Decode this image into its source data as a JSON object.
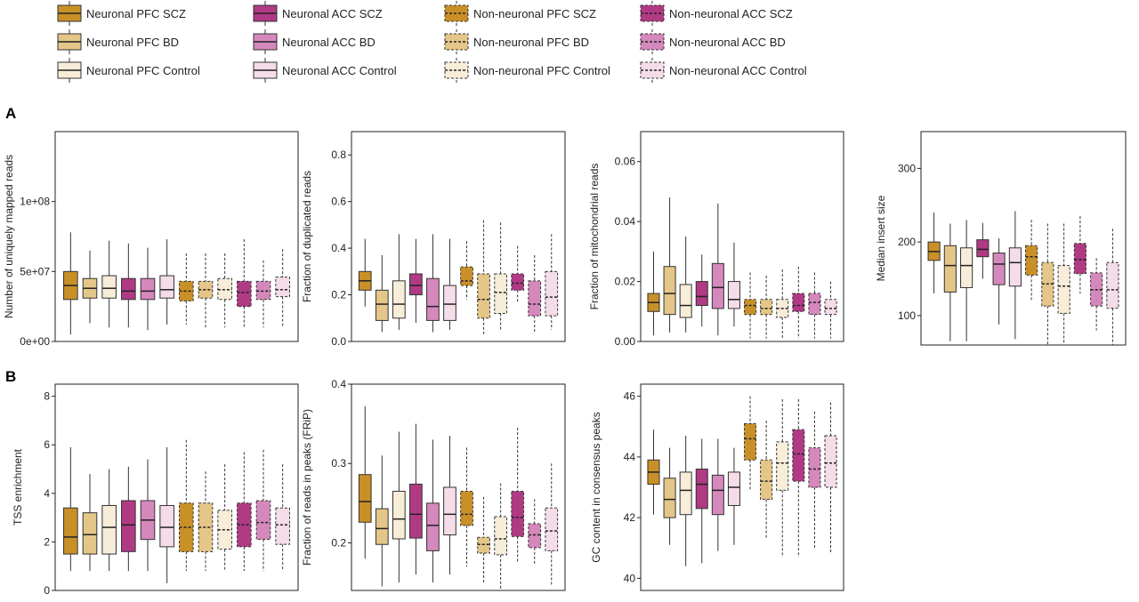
{
  "panel_letters": [
    "A",
    "B"
  ],
  "legend": [
    {
      "label": "Neuronal PFC SCZ",
      "color": "#c99028",
      "dashed": false
    },
    {
      "label": "Neuronal  PFC BD",
      "color": "#e4c688",
      "dashed": false
    },
    {
      "label": "Neuronal PFC Control",
      "color": "#f7edd8",
      "dashed": false
    },
    {
      "label": "Neuronal ACC SCZ",
      "color": "#b03a84",
      "dashed": false
    },
    {
      "label": "Neuronal  ACC BD",
      "color": "#d588bb",
      "dashed": false
    },
    {
      "label": "Neuronal  ACC Control",
      "color": "#f5dce9",
      "dashed": false
    },
    {
      "label": "Non-neuronal PFC SCZ",
      "color": "#c99028",
      "dashed": true
    },
    {
      "label": "Non-neuronal PFC BD",
      "color": "#e4c688",
      "dashed": true
    },
    {
      "label": "Non-neuronal PFC Control",
      "color": "#f7edd8",
      "dashed": true
    },
    {
      "label": "Non-neuronal ACC SCZ",
      "color": "#b03a84",
      "dashed": true
    },
    {
      "label": "Non-neuronal ACC BD",
      "color": "#d588bb",
      "dashed": true
    },
    {
      "label": "Non-neuronal ACC Control",
      "color": "#f5dce9",
      "dashed": true
    }
  ],
  "chart_data": [
    {
      "type": "box",
      "ylabel": "Number of uniquely mapped reads",
      "ylim": [
        0,
        150000000
      ],
      "yticks": [
        0,
        50000000,
        100000000
      ],
      "ytick_labels": [
        "0e+00",
        "5e+07",
        "1e+08"
      ],
      "boxes": [
        {
          "min": 5000000,
          "q1": 30000000,
          "median": 40000000,
          "q3": 50000000,
          "max": 78000000
        },
        {
          "min": 13000000,
          "q1": 31000000,
          "median": 38000000,
          "q3": 45000000,
          "max": 65000000
        },
        {
          "min": 10000000,
          "q1": 31000000,
          "median": 38000000,
          "q3": 47000000,
          "max": 72000000
        },
        {
          "min": 10000000,
          "q1": 30000000,
          "median": 36000000,
          "q3": 45000000,
          "max": 70000000
        },
        {
          "min": 8000000,
          "q1": 30000000,
          "median": 36000000,
          "q3": 45000000,
          "max": 67000000
        },
        {
          "min": 12000000,
          "q1": 31000000,
          "median": 37000000,
          "q3": 47000000,
          "max": 73000000
        },
        {
          "min": 12000000,
          "q1": 29000000,
          "median": 36000000,
          "q3": 43000000,
          "max": 63000000
        },
        {
          "min": 10000000,
          "q1": 31000000,
          "median": 37000000,
          "q3": 43000000,
          "max": 63000000
        },
        {
          "min": 10000000,
          "q1": 30000000,
          "median": 37000000,
          "q3": 45000000,
          "max": 63000000
        },
        {
          "min": 10000000,
          "q1": 25000000,
          "median": 35000000,
          "q3": 43000000,
          "max": 73000000
        },
        {
          "min": 10000000,
          "q1": 30000000,
          "median": 36000000,
          "q3": 43000000,
          "max": 58000000
        },
        {
          "min": 10000000,
          "q1": 32000000,
          "median": 37000000,
          "q3": 46000000,
          "max": 66000000
        }
      ]
    },
    {
      "type": "box",
      "ylabel": "Fraction of duplicated reads",
      "ylim": [
        0,
        0.9
      ],
      "yticks": [
        0,
        0.2,
        0.4,
        0.6,
        0.8
      ],
      "ytick_labels": [
        "0.0",
        "0.2",
        "0.4",
        "0.6",
        "0.8"
      ],
      "boxes": [
        {
          "min": 0.15,
          "q1": 0.22,
          "median": 0.26,
          "q3": 0.3,
          "max": 0.44
        },
        {
          "min": 0.04,
          "q1": 0.09,
          "median": 0.16,
          "q3": 0.22,
          "max": 0.37
        },
        {
          "min": 0.05,
          "q1": 0.1,
          "median": 0.16,
          "q3": 0.26,
          "max": 0.46
        },
        {
          "min": 0.08,
          "q1": 0.2,
          "median": 0.24,
          "q3": 0.29,
          "max": 0.44
        },
        {
          "min": 0.04,
          "q1": 0.09,
          "median": 0.15,
          "q3": 0.27,
          "max": 0.46
        },
        {
          "min": 0.05,
          "q1": 0.09,
          "median": 0.16,
          "q3": 0.24,
          "max": 0.44
        },
        {
          "min": 0.18,
          "q1": 0.24,
          "median": 0.26,
          "q3": 0.32,
          "max": 0.43
        },
        {
          "min": 0.03,
          "q1": 0.1,
          "median": 0.18,
          "q3": 0.29,
          "max": 0.52
        },
        {
          "min": 0.05,
          "q1": 0.12,
          "median": 0.21,
          "q3": 0.29,
          "max": 0.51
        },
        {
          "min": 0.17,
          "q1": 0.22,
          "median": 0.25,
          "q3": 0.29,
          "max": 0.41
        },
        {
          "min": 0.04,
          "q1": 0.11,
          "median": 0.16,
          "q3": 0.26,
          "max": 0.37
        },
        {
          "min": 0.05,
          "q1": 0.11,
          "median": 0.19,
          "q3": 0.3,
          "max": 0.46
        }
      ]
    },
    {
      "type": "box",
      "ylabel": "Fraction of mitochondrial reads",
      "ylim": [
        0,
        0.07
      ],
      "yticks": [
        0,
        0.02,
        0.04,
        0.06
      ],
      "ytick_labels": [
        "0.00",
        "0.02",
        "0.04",
        "0.06"
      ],
      "boxes": [
        {
          "min": 0.002,
          "q1": 0.01,
          "median": 0.013,
          "q3": 0.016,
          "max": 0.03
        },
        {
          "min": 0.003,
          "q1": 0.009,
          "median": 0.016,
          "q3": 0.025,
          "max": 0.048
        },
        {
          "min": 0.003,
          "q1": 0.008,
          "median": 0.012,
          "q3": 0.019,
          "max": 0.035
        },
        {
          "min": 0.005,
          "q1": 0.012,
          "median": 0.015,
          "q3": 0.02,
          "max": 0.029
        },
        {
          "min": 0.002,
          "q1": 0.011,
          "median": 0.018,
          "q3": 0.026,
          "max": 0.046
        },
        {
          "min": 0.005,
          "q1": 0.011,
          "median": 0.014,
          "q3": 0.02,
          "max": 0.033
        },
        {
          "min": 0.001,
          "q1": 0.009,
          "median": 0.012,
          "q3": 0.014,
          "max": 0.023
        },
        {
          "min": 0.001,
          "q1": 0.009,
          "median": 0.011,
          "q3": 0.014,
          "max": 0.022
        },
        {
          "min": 0.001,
          "q1": 0.008,
          "median": 0.011,
          "q3": 0.014,
          "max": 0.024
        },
        {
          "min": 0.001,
          "q1": 0.01,
          "median": 0.012,
          "q3": 0.016,
          "max": 0.025
        },
        {
          "min": 0.001,
          "q1": 0.009,
          "median": 0.013,
          "q3": 0.016,
          "max": 0.023
        },
        {
          "min": 0.001,
          "q1": 0.009,
          "median": 0.011,
          "q3": 0.014,
          "max": 0.02
        }
      ]
    },
    {
      "type": "box",
      "ylabel": "Median insert size",
      "ylim": [
        60,
        350
      ],
      "yticks": [
        100,
        200,
        300
      ],
      "ytick_labels": [
        "100",
        "200",
        "300"
      ],
      "boxes": [
        {
          "min": 130,
          "q1": 175,
          "median": 187,
          "q3": 200,
          "max": 240
        },
        {
          "min": 65,
          "q1": 132,
          "median": 168,
          "q3": 195,
          "max": 225
        },
        {
          "min": 65,
          "q1": 138,
          "median": 168,
          "q3": 192,
          "max": 230
        },
        {
          "min": 150,
          "q1": 180,
          "median": 190,
          "q3": 203,
          "max": 226
        },
        {
          "min": 88,
          "q1": 142,
          "median": 170,
          "q3": 185,
          "max": 205
        },
        {
          "min": 68,
          "q1": 140,
          "median": 172,
          "q3": 192,
          "max": 242
        },
        {
          "min": 120,
          "q1": 155,
          "median": 180,
          "q3": 195,
          "max": 230
        },
        {
          "min": 60,
          "q1": 113,
          "median": 143,
          "q3": 172,
          "max": 225
        },
        {
          "min": 60,
          "q1": 103,
          "median": 140,
          "q3": 168,
          "max": 225
        },
        {
          "min": 130,
          "q1": 157,
          "median": 176,
          "q3": 198,
          "max": 235
        },
        {
          "min": 80,
          "q1": 113,
          "median": 135,
          "q3": 158,
          "max": 178
        },
        {
          "min": 60,
          "q1": 110,
          "median": 135,
          "q3": 172,
          "max": 218
        }
      ]
    },
    {
      "type": "box",
      "ylabel": "TSS enrichment",
      "ylim": [
        0,
        8.5
      ],
      "yticks": [
        0,
        2,
        4,
        6,
        8
      ],
      "ytick_labels": [
        "0",
        "2",
        "4",
        "6",
        "8"
      ],
      "boxes": [
        {
          "min": 0.8,
          "q1": 1.5,
          "median": 2.2,
          "q3": 3.4,
          "max": 5.9
        },
        {
          "min": 0.8,
          "q1": 1.5,
          "median": 2.3,
          "q3": 3.2,
          "max": 4.8
        },
        {
          "min": 0.8,
          "q1": 1.5,
          "median": 2.6,
          "q3": 3.5,
          "max": 5.0
        },
        {
          "min": 0.8,
          "q1": 1.6,
          "median": 2.7,
          "q3": 3.7,
          "max": 5.1
        },
        {
          "min": 0.8,
          "q1": 2.1,
          "median": 2.9,
          "q3": 3.7,
          "max": 5.4
        },
        {
          "min": 0.3,
          "q1": 1.8,
          "median": 2.6,
          "q3": 3.5,
          "max": 5.9
        },
        {
          "min": 0.8,
          "q1": 1.6,
          "median": 2.6,
          "q3": 3.6,
          "max": 6.2
        },
        {
          "min": 0.8,
          "q1": 1.6,
          "median": 2.6,
          "q3": 3.6,
          "max": 4.9
        },
        {
          "min": 0.8,
          "q1": 1.7,
          "median": 2.5,
          "q3": 3.3,
          "max": 5.2
        },
        {
          "min": 0.8,
          "q1": 1.8,
          "median": 2.7,
          "q3": 3.6,
          "max": 5.7
        },
        {
          "min": 0.8,
          "q1": 2.1,
          "median": 2.8,
          "q3": 3.7,
          "max": 5.8
        },
        {
          "min": 0.8,
          "q1": 1.9,
          "median": 2.7,
          "q3": 3.4,
          "max": 5.2
        }
      ]
    },
    {
      "type": "box",
      "ylabel": "Fraction of reads in peaks (FRiP)",
      "ylim": [
        0.14,
        0.4
      ],
      "yticks": [
        0.2,
        0.3,
        0.4
      ],
      "ytick_labels": [
        "0.2",
        "0.3",
        "0.4"
      ],
      "boxes": [
        {
          "min": 0.18,
          "q1": 0.226,
          "median": 0.252,
          "q3": 0.286,
          "max": 0.372
        },
        {
          "min": 0.145,
          "q1": 0.198,
          "median": 0.218,
          "q3": 0.243,
          "max": 0.31
        },
        {
          "min": 0.15,
          "q1": 0.205,
          "median": 0.23,
          "q3": 0.265,
          "max": 0.34
        },
        {
          "min": 0.16,
          "q1": 0.206,
          "median": 0.236,
          "q3": 0.274,
          "max": 0.35
        },
        {
          "min": 0.15,
          "q1": 0.19,
          "median": 0.222,
          "q3": 0.25,
          "max": 0.33
        },
        {
          "min": 0.16,
          "q1": 0.21,
          "median": 0.236,
          "q3": 0.27,
          "max": 0.335
        },
        {
          "min": 0.17,
          "q1": 0.222,
          "median": 0.236,
          "q3": 0.265,
          "max": 0.32
        },
        {
          "min": 0.15,
          "q1": 0.187,
          "median": 0.198,
          "q3": 0.207,
          "max": 0.258
        },
        {
          "min": 0.14,
          "q1": 0.185,
          "median": 0.205,
          "q3": 0.233,
          "max": 0.275
        },
        {
          "min": 0.175,
          "q1": 0.208,
          "median": 0.232,
          "q3": 0.265,
          "max": 0.345
        },
        {
          "min": 0.172,
          "q1": 0.194,
          "median": 0.21,
          "q3": 0.224,
          "max": 0.255
        },
        {
          "min": 0.145,
          "q1": 0.19,
          "median": 0.215,
          "q3": 0.244,
          "max": 0.3
        }
      ]
    },
    {
      "type": "box",
      "ylabel": "GC content in consensus peaks",
      "ylim": [
        39.6,
        46.4
      ],
      "yticks": [
        40,
        42,
        44,
        46
      ],
      "ytick_labels": [
        "40",
        "42",
        "44",
        "46"
      ],
      "boxes": [
        {
          "min": 42.1,
          "q1": 43.1,
          "median": 43.5,
          "q3": 43.9,
          "max": 44.9
        },
        {
          "min": 41.1,
          "q1": 42.0,
          "median": 42.6,
          "q3": 43.3,
          "max": 44.3
        },
        {
          "min": 40.4,
          "q1": 42.1,
          "median": 42.9,
          "q3": 43.5,
          "max": 44.7
        },
        {
          "min": 40.5,
          "q1": 42.3,
          "median": 43.1,
          "q3": 43.6,
          "max": 44.6
        },
        {
          "min": 40.9,
          "q1": 42.1,
          "median": 42.9,
          "q3": 43.4,
          "max": 44.6
        },
        {
          "min": 41.1,
          "q1": 42.4,
          "median": 43.0,
          "q3": 43.5,
          "max": 44.3
        },
        {
          "min": 42.9,
          "q1": 43.9,
          "median": 44.6,
          "q3": 45.1,
          "max": 46.0
        },
        {
          "min": 41.3,
          "q1": 42.6,
          "median": 43.2,
          "q3": 43.9,
          "max": 45.2
        },
        {
          "min": 40.7,
          "q1": 42.9,
          "median": 43.8,
          "q3": 44.5,
          "max": 45.9
        },
        {
          "min": 40.7,
          "q1": 43.2,
          "median": 44.1,
          "q3": 44.9,
          "max": 45.9
        },
        {
          "min": 41.0,
          "q1": 43.0,
          "median": 43.6,
          "q3": 44.3,
          "max": 45.5
        },
        {
          "min": 40.8,
          "q1": 43.0,
          "median": 43.8,
          "q3": 44.7,
          "max": 45.8
        }
      ]
    }
  ]
}
